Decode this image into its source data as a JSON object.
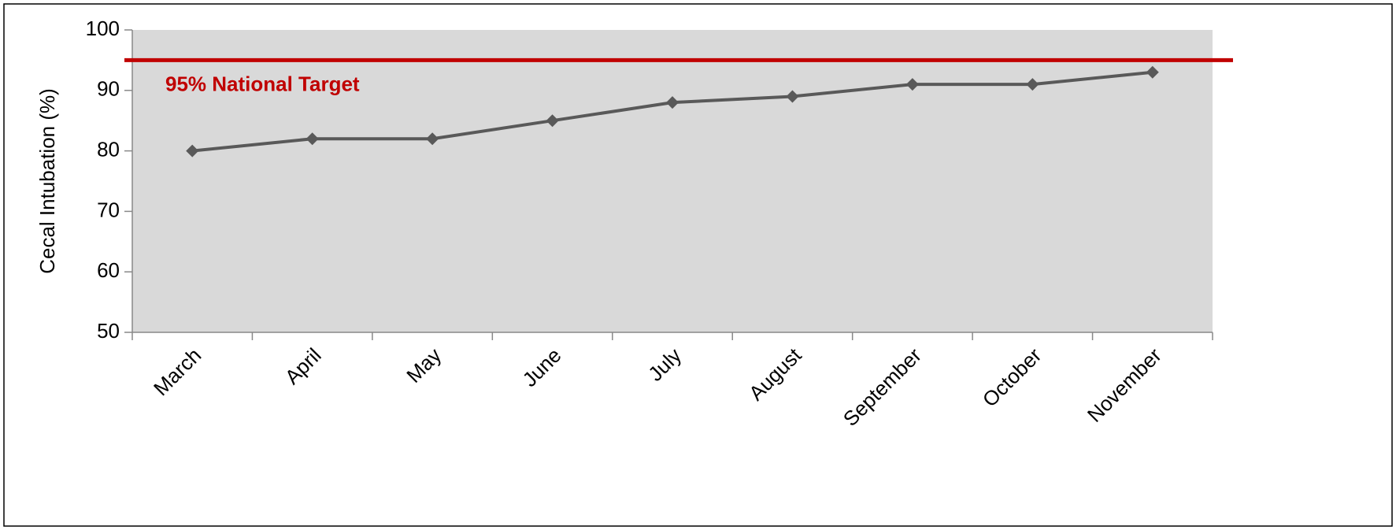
{
  "chart_data": {
    "type": "line",
    "y_label": "Cecal Intubation (%)",
    "categories": [
      "March",
      "April",
      "May",
      "June",
      "July",
      "August",
      "September",
      "October",
      "November"
    ],
    "values": [
      80,
      82,
      82,
      85,
      88,
      89,
      91,
      91,
      93
    ],
    "color": "#595959",
    "ylim": [
      50,
      100
    ],
    "yticks": [
      50,
      60,
      70,
      80,
      90,
      100
    ],
    "target": {
      "label": "95% National Target",
      "value": 95,
      "color": "#c00000"
    },
    "plot_background": "#d9d9d9"
  }
}
